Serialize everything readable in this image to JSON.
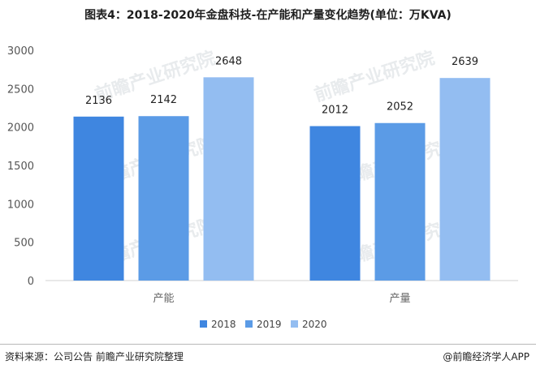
{
  "title": "图表4：2018-2020年金盘科技-在产能和产量变化趋势(单位：万KVA)",
  "source": "资料来源：公司公告 前瞻产业研究院整理",
  "credit": "@前瞻经济学人APP",
  "watermark": "前瞻产业研究院",
  "colors": {
    "2018": "#3f86e0",
    "2019": "#5b9be6",
    "2020": "#93bdf1"
  },
  "chart_data": {
    "type": "bar",
    "categories": [
      "产能",
      "产量"
    ],
    "series": [
      {
        "name": "2018",
        "values": [
          2136,
          2012
        ]
      },
      {
        "name": "2019",
        "values": [
          2142,
          2052
        ]
      },
      {
        "name": "2020",
        "values": [
          2648,
          2639
        ]
      }
    ],
    "ylim": [
      0,
      3000
    ],
    "yticks": [
      0,
      500,
      1000,
      1500,
      2000,
      2500,
      3000
    ],
    "legend": "bottom",
    "grid": false
  }
}
